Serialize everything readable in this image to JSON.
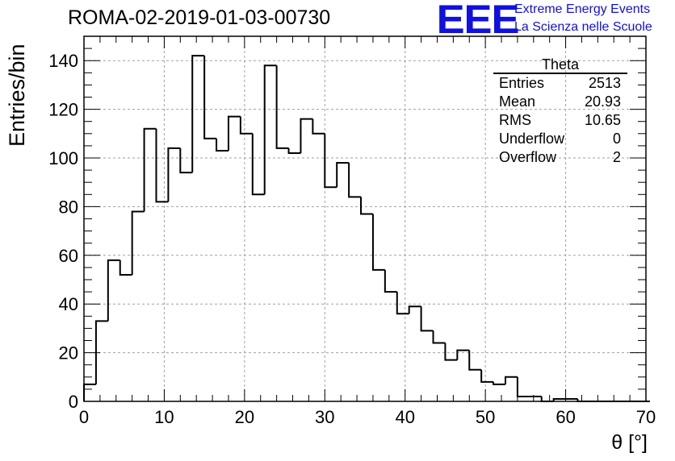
{
  "header": {
    "title": "ROMA-02-2019-01-03-00730",
    "logo_text": "EEE",
    "tagline_1": "Extreme Energy Events",
    "tagline_2": "La Scienza nelle Scuole",
    "brand_color": "#1010e0"
  },
  "stats": {
    "title": "Theta",
    "rows": [
      {
        "label": "Entries",
        "value": "2513"
      },
      {
        "label": "Mean",
        "value": "20.93"
      },
      {
        "label": "RMS",
        "value": "10.65"
      },
      {
        "label": "Underflow",
        "value": "0"
      },
      {
        "label": "Overflow",
        "value": "2"
      }
    ]
  },
  "chart_data": {
    "type": "bar",
    "histogram": true,
    "xlabel": "θ [°]",
    "ylabel": "Entries/bin",
    "xlim": [
      0,
      70
    ],
    "ylim": [
      0,
      150
    ],
    "bin_width": 1.5,
    "x_start": 0,
    "xticks": [
      0,
      10,
      20,
      30,
      40,
      50,
      60,
      70
    ],
    "yticks": [
      0,
      20,
      40,
      60,
      80,
      100,
      120,
      140
    ],
    "grid": true,
    "values": [
      7,
      33,
      58,
      52,
      78,
      112,
      82,
      104,
      94,
      142,
      108,
      103,
      117,
      110,
      85,
      138,
      104,
      102,
      116,
      110,
      88,
      98,
      84,
      77,
      54,
      45,
      36,
      39,
      29,
      24,
      17,
      21,
      13,
      8,
      7,
      10,
      2,
      2,
      0,
      1,
      1,
      0,
      0,
      0,
      0,
      0,
      0
    ]
  }
}
